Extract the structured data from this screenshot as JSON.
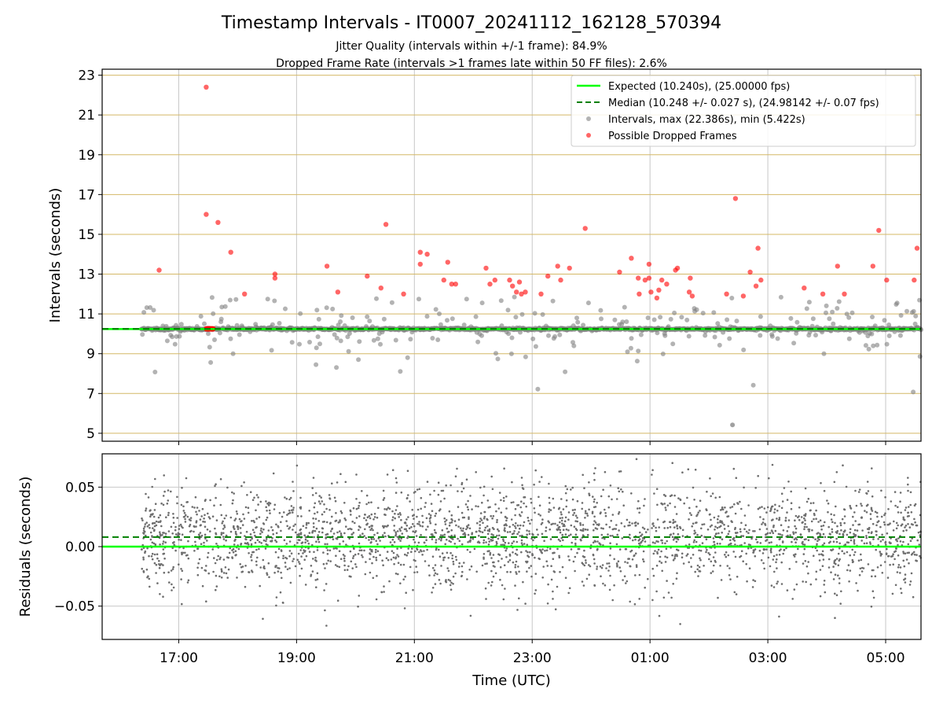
{
  "figure": {
    "title": "Timestamp Intervals - IT0007_20241112_162128_570394",
    "subtitle_1": "Jitter Quality (intervals within +/-1 frame): 84.9%",
    "subtitle_2": "Dropped Frame Rate (intervals >1 frames late within 50 FF files): 2.6%"
  },
  "colors": {
    "expected": "#00ff00",
    "median": "#008000",
    "intervals": "#808080",
    "dropped": "#ff0000",
    "hgrid": "#d4b866",
    "vgrid": "#c8c8c8",
    "residual_points": "#6e6e6e"
  },
  "chart_data": [
    {
      "type": "scatter",
      "id": "intervals",
      "ylabel": "Intervals (seconds)",
      "xlim": [
        "15:42",
        "05:36"
      ],
      "ylim": [
        4.6,
        23.3
      ],
      "y_ticks": [
        5,
        7,
        9,
        11,
        13,
        15,
        17,
        19,
        21,
        23
      ],
      "grid": true,
      "legend_position": "top-right",
      "legend": [
        {
          "key": "expected",
          "label": "Expected (10.240s), (25.00000 fps)"
        },
        {
          "key": "median",
          "label": "Median (10.248 +/- 0.027 s), (24.98142 +/- 0.07 fps)"
        },
        {
          "key": "intervals",
          "label": "Intervals, max (22.386s), min (5.422s)"
        },
        {
          "key": "dropped",
          "label": "Possible Dropped Frames"
        }
      ],
      "expected_value": 10.24,
      "median_value": 10.248,
      "interval_range": [
        "16:22",
        "05:36"
      ],
      "series": [
        {
          "name": "Possible Dropped Frames",
          "points": [
            [
              "16:40",
              13.2
            ],
            [
              "17:28",
              22.4
            ],
            [
              "17:28",
              16.0
            ],
            [
              "17:40",
              15.6
            ],
            [
              "17:53",
              14.1
            ],
            [
              "18:07",
              12.0
            ],
            [
              "18:38",
              13.0
            ],
            [
              "18:38",
              12.8
            ],
            [
              "19:31",
              13.4
            ],
            [
              "19:42",
              12.1
            ],
            [
              "20:12",
              12.9
            ],
            [
              "20:26",
              12.3
            ],
            [
              "20:31",
              15.5
            ],
            [
              "20:49",
              12.0
            ],
            [
              "21:06",
              14.1
            ],
            [
              "21:06",
              13.5
            ],
            [
              "21:13",
              14.0
            ],
            [
              "21:30",
              12.7
            ],
            [
              "21:34",
              13.6
            ],
            [
              "21:38",
              12.5
            ],
            [
              "21:42",
              12.5
            ],
            [
              "22:13",
              13.3
            ],
            [
              "22:17",
              12.5
            ],
            [
              "22:22",
              12.7
            ],
            [
              "22:37",
              12.7
            ],
            [
              "22:40",
              12.4
            ],
            [
              "22:44",
              12.1
            ],
            [
              "22:47",
              12.6
            ],
            [
              "22:49",
              12.0
            ],
            [
              "22:53",
              12.1
            ],
            [
              "23:09",
              12.0
            ],
            [
              "23:16",
              12.9
            ],
            [
              "23:26",
              13.4
            ],
            [
              "23:29",
              12.7
            ],
            [
              "23:38",
              13.3
            ],
            [
              "23:54",
              15.3
            ],
            [
              "24:29",
              13.1
            ],
            [
              "24:41",
              13.8
            ],
            [
              "24:48",
              12.8
            ],
            [
              "24:49",
              12.0
            ],
            [
              "24:55",
              12.7
            ],
            [
              "24:59",
              12.8
            ],
            [
              "24:59",
              13.5
            ],
            [
              "25:01",
              12.1
            ],
            [
              "25:07",
              11.8
            ],
            [
              "25:09",
              12.2
            ],
            [
              "25:12",
              12.7
            ],
            [
              "25:17",
              12.5
            ],
            [
              "25:26",
              13.2
            ],
            [
              "25:28",
              13.3
            ],
            [
              "25:40",
              12.1
            ],
            [
              "25:41",
              12.8
            ],
            [
              "25:43",
              11.9
            ],
            [
              "26:18",
              12.0
            ],
            [
              "26:27",
              16.8
            ],
            [
              "26:35",
              11.9
            ],
            [
              "26:42",
              13.1
            ],
            [
              "26:48",
              12.4
            ],
            [
              "26:50",
              14.3
            ],
            [
              "26:53",
              12.7
            ],
            [
              "27:37",
              12.3
            ],
            [
              "27:56",
              12.0
            ],
            [
              "28:11",
              13.4
            ],
            [
              "28:18",
              12.0
            ],
            [
              "28:47",
              13.4
            ],
            [
              "28:53",
              15.2
            ],
            [
              "29:01",
              12.7
            ],
            [
              "29:29",
              12.7
            ],
            [
              "29:32",
              14.3
            ]
          ],
          "cluster": {
            "from": "17:28",
            "to": "17:35",
            "value": 10.25
          }
        }
      ]
    },
    {
      "type": "scatter",
      "id": "residuals",
      "ylabel": "Residuals (seconds)",
      "xlabel": "Time (UTC)",
      "xlim": [
        "15:42",
        "05:36"
      ],
      "ylim": [
        -0.078,
        0.078
      ],
      "y_ticks": [
        {
          "value": 0.05,
          "label": "0.05"
        },
        {
          "value": 0.0,
          "label": "0.00"
        },
        {
          "value": -0.05,
          "label": "−0.05"
        }
      ],
      "x_ticks": [
        "17:00",
        "19:00",
        "21:00",
        "23:00",
        "01:00",
        "03:00",
        "05:00"
      ],
      "grid": true,
      "expected_residual": 0.0,
      "median_residual": 0.008,
      "residual_spread": 0.022
    }
  ]
}
